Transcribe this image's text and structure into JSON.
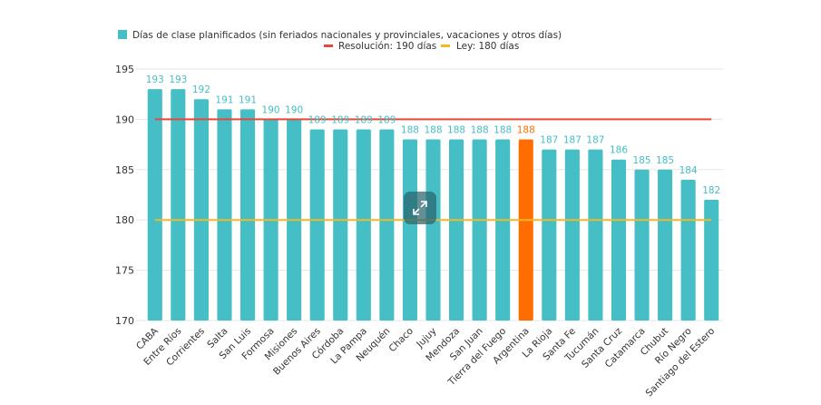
{
  "chart_data": {
    "type": "bar",
    "title": "",
    "xlabel": "",
    "ylabel": "",
    "ylim": [
      170,
      195
    ],
    "yticks": [
      170,
      175,
      180,
      185,
      190,
      195
    ],
    "grid": true,
    "legend_position": "top-center",
    "categories": [
      "CABA",
      "Entre Ríos",
      "Corrientes",
      "Salta",
      "San Luis",
      "Formosa",
      "Misiones",
      "Buenos Aires",
      "Córdoba",
      "La Pampa",
      "Neuquén",
      "Chaco",
      "Jujuy",
      "Mendoza",
      "San Juan",
      "Tierra del Fuego",
      "Argentina",
      "La Rioja",
      "Santa Fe",
      "Tucumán",
      "Santa Cruz",
      "Catamarca",
      "Chubut",
      "Río Negro",
      "Santiago del Estero"
    ],
    "series": [
      {
        "name": "Días de clase planificados (sin feriados nacionales y provinciales, vacaciones y otros días)",
        "values": [
          193,
          193,
          192,
          191,
          191,
          190,
          190,
          189,
          189,
          189,
          189,
          188,
          188,
          188,
          188,
          188,
          188,
          187,
          187,
          187,
          186,
          185,
          185,
          184,
          182
        ],
        "color": "#45bec6",
        "highlight": {
          "category": "Argentina",
          "color": "#ff6d00"
        }
      }
    ],
    "reference_lines": [
      {
        "name": "Resolución: 190 días",
        "value": 190,
        "color": "#e8473b"
      },
      {
        "name": "Ley: 180 días",
        "value": 180,
        "color": "#f2b825"
      }
    ]
  },
  "ui": {
    "expand_icon": "expand-arrows-icon"
  }
}
